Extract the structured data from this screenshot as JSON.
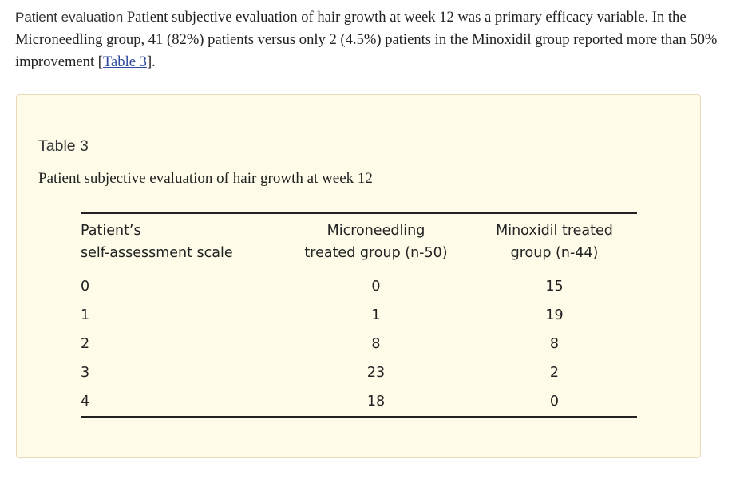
{
  "intro": {
    "heading": "Patient evaluation",
    "text": "Patient subjective evaluation of hair growth at week 12 was a primary efficacy variable. In the Microneedling group, 41 (82%) patients versus only 2 (4.5%) patients in the Minoxidil group reported more than 50% improvement [",
    "link": "Table 3",
    "tail": "]."
  },
  "table": {
    "label": "Table 3",
    "caption": "Patient subjective evaluation of hair growth at week 12",
    "headers": {
      "col1_line1": "Patient’s",
      "col1_line2": "self-assessment scale",
      "col2_line1": "Microneedling",
      "col2_line2": "treated group (n-50)",
      "col3_line1": "Minoxidil treated",
      "col3_line2": "group (n-44)"
    },
    "rows": [
      {
        "scale": "0",
        "micro": "0",
        "minox": "15"
      },
      {
        "scale": "1",
        "micro": "1",
        "minox": "19"
      },
      {
        "scale": "2",
        "micro": "8",
        "minox": "8"
      },
      {
        "scale": "3",
        "micro": "23",
        "minox": "2"
      },
      {
        "scale": "4",
        "micro": "18",
        "minox": "0"
      }
    ]
  }
}
